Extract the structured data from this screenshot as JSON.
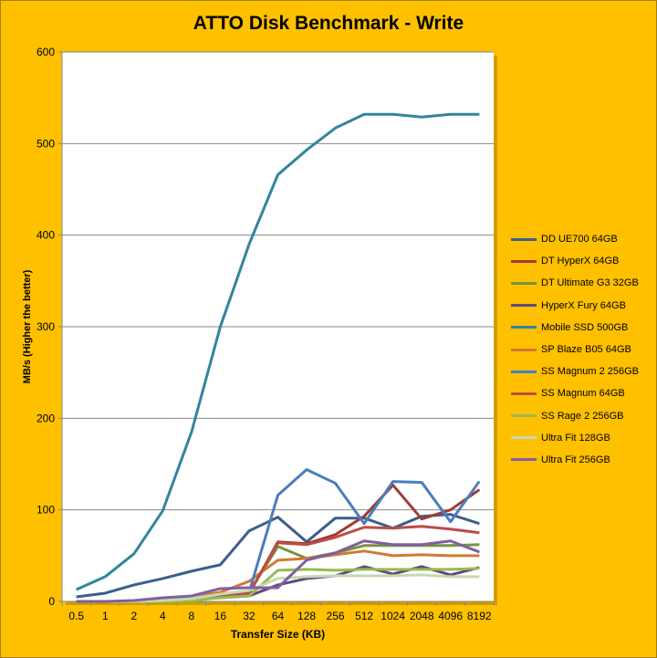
{
  "chart_data": {
    "type": "line",
    "title": "ATTO Disk Benchmark - Write",
    "xlabel": "Transfer Size (KB)",
    "ylabel": "MB/s (Higher the better)",
    "ylim": [
      0,
      600
    ],
    "yticks": [
      "0",
      "100",
      "200",
      "300",
      "400",
      "500",
      "600"
    ],
    "categories": [
      "0.5",
      "1",
      "2",
      "4",
      "8",
      "16",
      "32",
      "64",
      "128",
      "256",
      "512",
      "1024",
      "2048",
      "4096",
      "8192"
    ],
    "grid": true,
    "legend": "right",
    "series": [
      {
        "name": "DD UE700 64GB",
        "color": "#3a5f8c",
        "values": [
          5,
          9,
          18,
          25,
          33,
          40,
          77,
          92,
          65,
          91,
          91,
          80,
          93,
          95,
          85
        ]
      },
      {
        "name": "DT HyperX 64GB",
        "color": "#9e3b36",
        "values": [
          0,
          0,
          0,
          1,
          2,
          5,
          8,
          65,
          63,
          73,
          93,
          127,
          90,
          100,
          122
        ]
      },
      {
        "name": "DT Ultimate G3 32GB",
        "color": "#77933c",
        "values": [
          0,
          0,
          0,
          0,
          2,
          6,
          10,
          60,
          47,
          53,
          61,
          61,
          61,
          61,
          62
        ]
      },
      {
        "name": "HyperX Fury 64GB",
        "color": "#604a7b",
        "values": [
          0,
          0,
          0,
          1,
          2,
          4,
          6,
          18,
          25,
          28,
          38,
          30,
          38,
          29,
          37
        ]
      },
      {
        "name": "Mobile SSD 500GB",
        "color": "#31859c",
        "values": [
          13,
          27,
          52,
          99,
          185,
          300,
          390,
          466,
          493,
          517,
          532,
          532,
          529,
          532,
          532
        ]
      },
      {
        "name": "SP Blaze B05 64GB",
        "color": "#d07a33",
        "values": [
          0,
          0,
          0,
          2,
          5,
          10,
          22,
          45,
          47,
          51,
          55,
          50,
          51,
          50,
          50
        ]
      },
      {
        "name": "SS Magnum 2 256GB",
        "color": "#4a7ebb",
        "values": [
          0,
          0,
          0,
          1,
          2,
          5,
          10,
          116,
          144,
          129,
          85,
          131,
          130,
          87,
          131
        ]
      },
      {
        "name": "SS Magnum 64GB",
        "color": "#be4b48",
        "values": [
          0,
          0,
          0,
          1,
          2,
          5,
          9,
          64,
          62,
          70,
          81,
          80,
          82,
          79,
          75
        ]
      },
      {
        "name": "SS Rage 2 256GB",
        "color": "#98b954",
        "values": [
          0,
          0,
          0,
          0,
          1,
          4,
          6,
          34,
          35,
          34,
          35,
          35,
          35,
          35,
          36
        ]
      },
      {
        "name": "Ultra Fit 128GB",
        "color": "#c6d9b0",
        "values": [
          0,
          0,
          0,
          1,
          3,
          8,
          12,
          25,
          27,
          28,
          28,
          28,
          29,
          27,
          27
        ]
      },
      {
        "name": "Ultra Fit 256GB",
        "color": "#7f60a0",
        "values": [
          0,
          0,
          1,
          4,
          6,
          14,
          15,
          15,
          45,
          53,
          66,
          62,
          62,
          66,
          54
        ]
      }
    ]
  }
}
